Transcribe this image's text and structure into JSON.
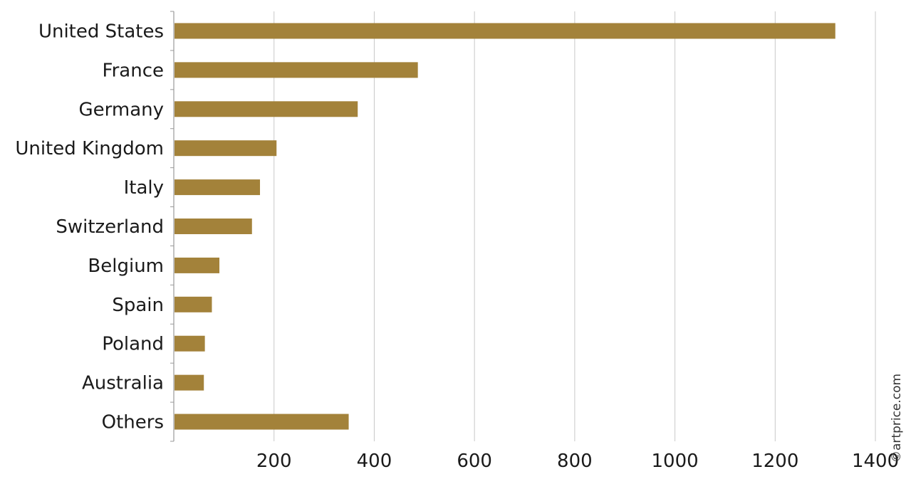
{
  "chart_data": {
    "type": "bar",
    "orientation": "horizontal",
    "categories": [
      "United States",
      "France",
      "Germany",
      "United Kingdom",
      "Italy",
      "Switzerland",
      "Belgium",
      "Spain",
      "Poland",
      "Australia",
      "Others"
    ],
    "values": [
      1320,
      487,
      367,
      205,
      172,
      156,
      91,
      76,
      62,
      60,
      349
    ],
    "xticks": [
      "200",
      "400",
      "600",
      "800",
      "1000",
      "1200",
      "1400"
    ],
    "xlim": [
      0,
      1400
    ],
    "grid": "vertical",
    "bar_color": "#a3823a",
    "title": "",
    "xlabel": "",
    "ylabel": ""
  },
  "watermark": "©artprice.com"
}
